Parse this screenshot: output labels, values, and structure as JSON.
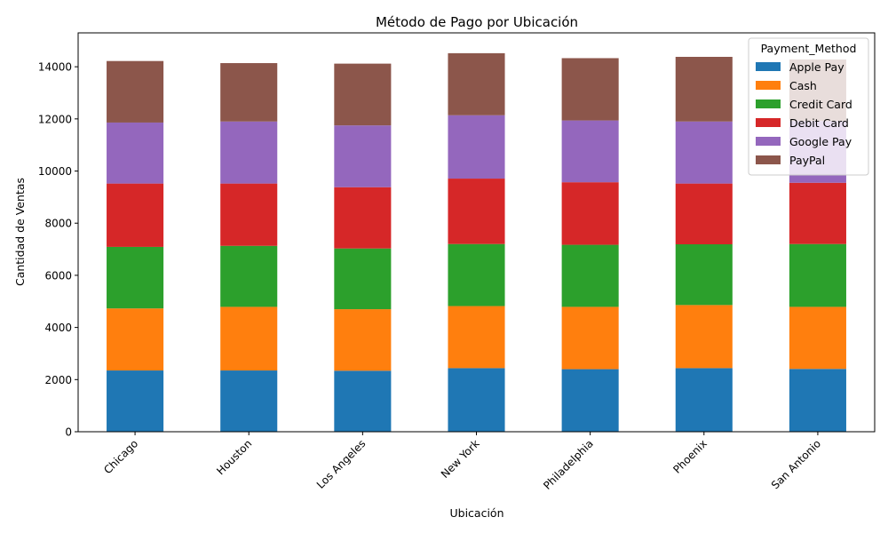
{
  "chart_data": {
    "type": "bar",
    "stacked": true,
    "title": "Método de Pago por Ubicación",
    "xlabel": "Ubicación",
    "ylabel": "Cantidad de Ventas",
    "ylim": [
      0,
      15300
    ],
    "yticks": [
      0,
      2000,
      4000,
      6000,
      8000,
      10000,
      12000,
      14000
    ],
    "grid": false,
    "legend": {
      "title": "Payment_Method",
      "placement": "top-right"
    },
    "categories": [
      "Chicago",
      "Houston",
      "Los Angeles",
      "New York",
      "Philadelphia",
      "Phoenix",
      "San Antonio"
    ],
    "series": [
      {
        "name": "Apple Pay",
        "color": "#1f77b4",
        "values": [
          2350,
          2350,
          2340,
          2440,
          2400,
          2440,
          2410
        ]
      },
      {
        "name": "Cash",
        "color": "#ff7f0e",
        "values": [
          2380,
          2440,
          2360,
          2380,
          2390,
          2420,
          2380
        ]
      },
      {
        "name": "Credit Card",
        "color": "#2ca02c",
        "values": [
          2360,
          2340,
          2330,
          2380,
          2380,
          2330,
          2410
        ]
      },
      {
        "name": "Debit Card",
        "color": "#d62728",
        "values": [
          2430,
          2390,
          2350,
          2510,
          2400,
          2330,
          2350
        ]
      },
      {
        "name": "Google Pay",
        "color": "#9467bd",
        "values": [
          2340,
          2380,
          2370,
          2430,
          2370,
          2380,
          2370
        ]
      },
      {
        "name": "PayPal",
        "color": "#8c564b",
        "values": [
          2360,
          2240,
          2370,
          2380,
          2390,
          2480,
          2360
        ]
      }
    ]
  }
}
